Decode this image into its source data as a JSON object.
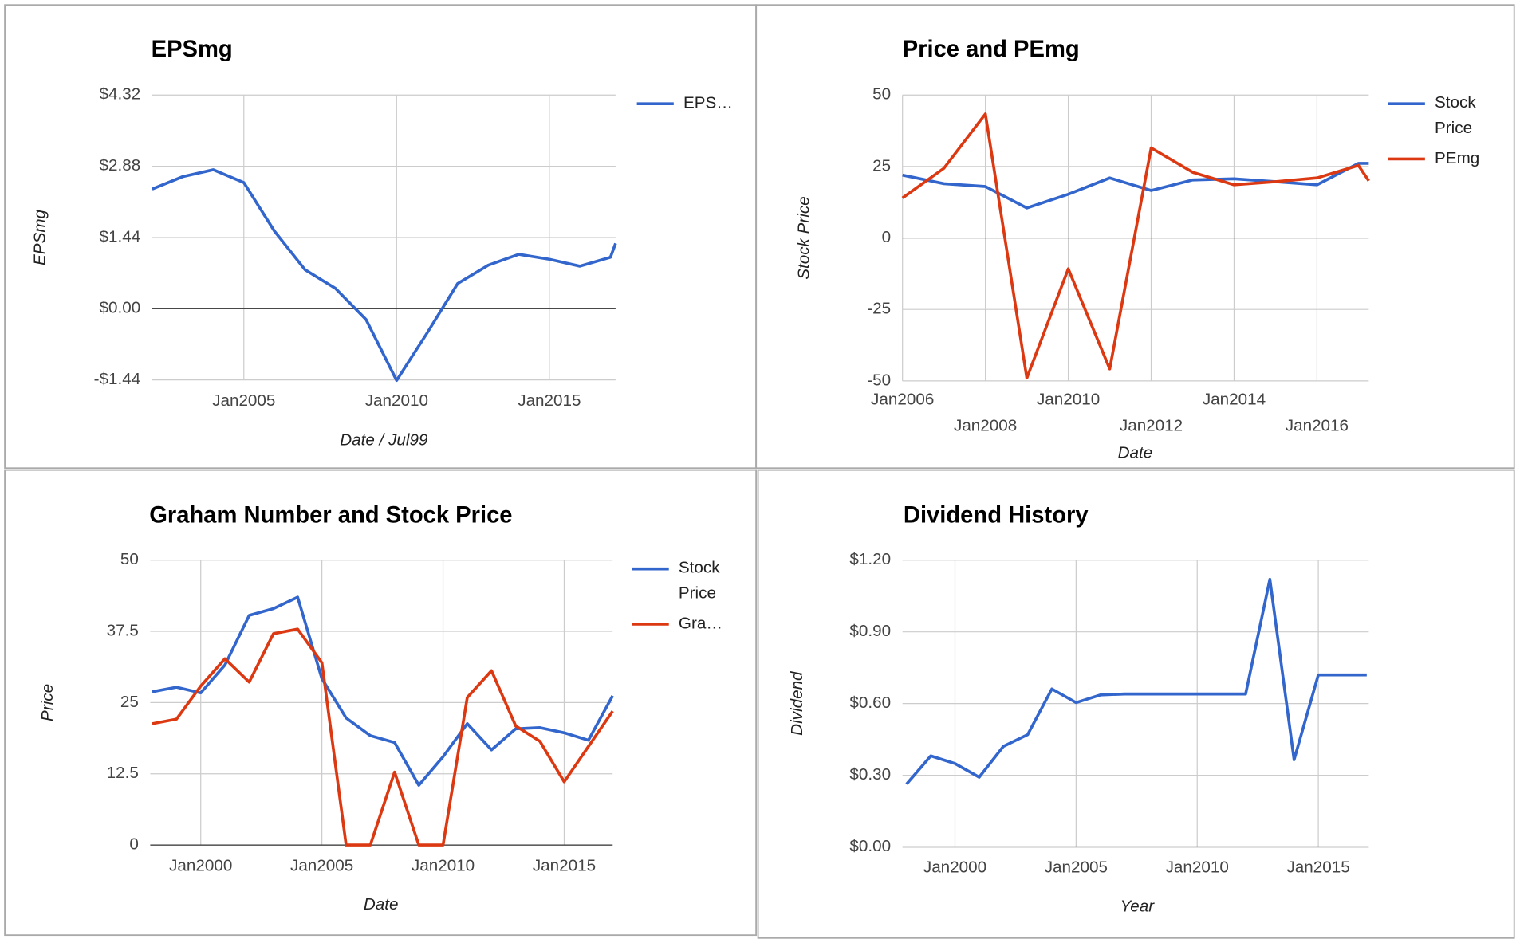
{
  "chart_data": [
    {
      "type": "line",
      "title": "EPSmg",
      "x_label": "Date / Jul99",
      "y_label": "EPSmg",
      "x": [
        "2002-01",
        "2003-01",
        "2004-01",
        "2005-01",
        "2006-01",
        "2007-01",
        "2008-01",
        "2009-01",
        "2010-01",
        "2011-01",
        "2012-01",
        "2013-01",
        "2014-01",
        "2015-01",
        "2016-01",
        "2017-01",
        "2017-03"
      ],
      "series": [
        {
          "name": "EPS…",
          "color": "#3366cc",
          "values": [
            2.42,
            2.67,
            2.81,
            2.55,
            1.57,
            0.79,
            0.41,
            -0.22,
            -1.45,
            -0.49,
            0.51,
            0.88,
            1.1,
            1.0,
            0.86,
            1.04,
            1.32
          ]
        }
      ],
      "xlim": [
        "2002-01",
        "2017-03"
      ],
      "xticks": [
        {
          "value": "2005-01",
          "label": "Jan2005"
        },
        {
          "value": "2010-01",
          "label": "Jan2010"
        },
        {
          "value": "2015-01",
          "label": "Jan2015"
        }
      ],
      "ylim": [
        -1.44,
        4.32
      ],
      "yticks": [
        {
          "value": -1.44,
          "label": "-$1.44"
        },
        {
          "value": 0,
          "label": "$0.00"
        },
        {
          "value": 1.44,
          "label": "$1.44"
        },
        {
          "value": 2.88,
          "label": "$2.88"
        },
        {
          "value": 4.32,
          "label": "$4.32"
        }
      ],
      "grid": true
    },
    {
      "type": "line",
      "title": "Price and PEmg",
      "x_label": "Date",
      "y_label": "Stock Price",
      "x": [
        "2006-01",
        "2007-01",
        "2008-01",
        "2009-01",
        "2010-01",
        "2011-01",
        "2012-01",
        "2013-01",
        "2014-01",
        "2015-01",
        "2016-01",
        "2017-01",
        "2017-04"
      ],
      "series": [
        {
          "name": "Stock Price",
          "color": "#3366cc",
          "values": [
            22,
            19,
            18,
            10.5,
            15.3,
            21,
            16.6,
            20.3,
            20.7,
            19.7,
            18.6,
            26.1,
            26.1
          ]
        },
        {
          "name": "PEmg",
          "color": "#dc3912",
          "values": [
            14,
            24.4,
            43.4,
            -49,
            -10.8,
            -45.8,
            31.5,
            23,
            18.6,
            19.7,
            21,
            25.4,
            20
          ]
        }
      ],
      "xlim": [
        "2006-01",
        "2017-04"
      ],
      "xticks": [
        {
          "value": "2006-01",
          "label": "Jan2006"
        },
        {
          "value": "2008-01",
          "label": "Jan2008"
        },
        {
          "value": "2010-01",
          "label": "Jan2010"
        },
        {
          "value": "2012-01",
          "label": "Jan2012"
        },
        {
          "value": "2014-01",
          "label": "Jan2014"
        },
        {
          "value": "2016-01",
          "label": "Jan2016"
        }
      ],
      "ylim": [
        -50,
        50
      ],
      "yticks": [
        -50,
        -25,
        0,
        25,
        50
      ],
      "grid": true
    },
    {
      "type": "line",
      "title": "Graham Number and Stock Price",
      "x_label": "Date",
      "y_label": "Price",
      "x": [
        "1998-01",
        "1999-01",
        "2000-01",
        "2001-01",
        "2002-01",
        "2003-01",
        "2004-01",
        "2005-01",
        "2006-01",
        "2007-01",
        "2008-01",
        "2009-01",
        "2010-01",
        "2011-01",
        "2012-01",
        "2013-01",
        "2014-01",
        "2015-01",
        "2016-01",
        "2017-01"
      ],
      "series": [
        {
          "name": "Stock Price",
          "color": "#3366cc",
          "values": [
            26.9,
            27.7,
            26.7,
            31.6,
            40.3,
            41.5,
            43.5,
            29.2,
            22.3,
            19.2,
            18,
            10.5,
            15.5,
            21.3,
            16.7,
            20.4,
            20.6,
            19.7,
            18.4,
            26.2
          ]
        },
        {
          "name": "Gra…",
          "color": "#dc3912",
          "values": [
            21.3,
            22.1,
            27.9,
            32.7,
            28.6,
            37.1,
            37.9,
            32,
            0,
            0,
            12.8,
            0,
            0,
            25.9,
            30.6,
            20.9,
            18.2,
            11.1,
            17.3,
            23.5
          ]
        }
      ],
      "xlim": [
        "1997-12",
        "2017-01"
      ],
      "xticks": [
        {
          "value": "2000-01",
          "label": "Jan2000"
        },
        {
          "value": "2005-01",
          "label": "Jan2005"
        },
        {
          "value": "2010-01",
          "label": "Jan2010"
        },
        {
          "value": "2015-01",
          "label": "Jan2015"
        }
      ],
      "ylim": [
        0,
        50
      ],
      "yticks": [
        0,
        12.5,
        25,
        37.5,
        50
      ],
      "grid": true
    },
    {
      "type": "line",
      "title": "Dividend History",
      "x_label": "Year",
      "y_label": "Dividend",
      "x": [
        "1998-01",
        "1999-01",
        "2000-01",
        "2001-01",
        "2002-01",
        "2003-01",
        "2004-01",
        "2005-01",
        "2006-01",
        "2007-01",
        "2008-01",
        "2009-01",
        "2010-01",
        "2011-01",
        "2012-01",
        "2013-01",
        "2014-01",
        "2015-01",
        "2016-01",
        "2017-01"
      ],
      "series": [
        {
          "name": "Dividend",
          "color": "#3366cc",
          "values": [
            0.263,
            0.381,
            0.349,
            0.292,
            0.421,
            0.47,
            0.661,
            0.604,
            0.636,
            0.64,
            0.64,
            0.64,
            0.64,
            0.64,
            0.64,
            1.12,
            0.365,
            0.72,
            0.72,
            0.72
          ]
        }
      ],
      "xlim": [
        "1997-11",
        "2017-02"
      ],
      "xticks": [
        {
          "value": "2000-01",
          "label": "Jan2000"
        },
        {
          "value": "2005-01",
          "label": "Jan2005"
        },
        {
          "value": "2010-01",
          "label": "Jan2010"
        },
        {
          "value": "2015-01",
          "label": "Jan2015"
        }
      ],
      "ylim": [
        0,
        1.2
      ],
      "yticks": [
        {
          "value": 0,
          "label": "$0.00"
        },
        {
          "value": 0.3,
          "label": "$0.30"
        },
        {
          "value": 0.6,
          "label": "$0.60"
        },
        {
          "value": 0.9,
          "label": "$0.90"
        },
        {
          "value": 1.2,
          "label": "$1.20"
        }
      ],
      "grid": true
    }
  ]
}
